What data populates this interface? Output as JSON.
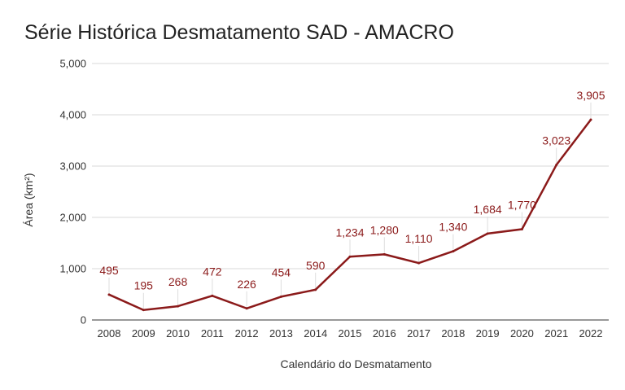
{
  "chart_data": {
    "type": "line",
    "title": "Série Histórica Desmatamento SAD - AMACRO",
    "xlabel": "Calendário do Desmatamento",
    "ylabel": "Área (km²)",
    "ylim": [
      0,
      5000
    ],
    "y_ticks": [
      0,
      1000,
      2000,
      3000,
      4000,
      5000
    ],
    "y_tick_labels": [
      "0",
      "1,000",
      "2,000",
      "3,000",
      "4,000",
      "5,000"
    ],
    "grid": true,
    "line_color": "#8b1a1a",
    "categories": [
      "2008",
      "2009",
      "2010",
      "2011",
      "2012",
      "2013",
      "2014",
      "2015",
      "2016",
      "2017",
      "2018",
      "2019",
      "2020",
      "2021",
      "2022"
    ],
    "values": [
      495,
      195,
      268,
      472,
      226,
      454,
      590,
      1234,
      1280,
      1110,
      1340,
      1684,
      1770,
      3023,
      3905
    ],
    "data_labels": [
      "495",
      "195",
      "268",
      "472",
      "226",
      "454",
      "590",
      "1,234",
      "1,280",
      "1,110",
      "1,340",
      "1,684",
      "1,770",
      "3,023",
      "3,905"
    ]
  }
}
